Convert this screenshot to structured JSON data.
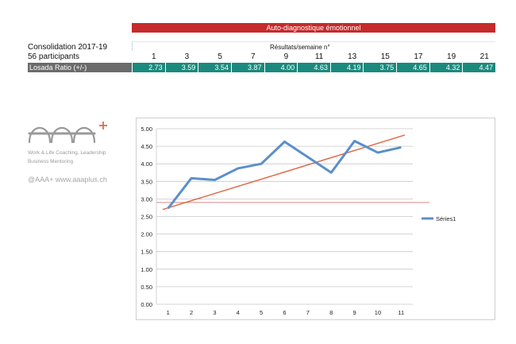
{
  "banner_title": "Auto-diagnostique émotionnel",
  "left_info": {
    "line1": "Consolidation 2017-19",
    "line2": "56 participants"
  },
  "results_label": "Résultats/semaine n°",
  "weeks": [
    "1",
    "3",
    "5",
    "7",
    "9",
    "11",
    "13",
    "15",
    "17",
    "19",
    "21"
  ],
  "ratio_label": "Losada Ratio (+/-)",
  "ratio_values": [
    "2.73",
    "3.59",
    "3.54",
    "3.87",
    "4.00",
    "4.63",
    "4.19",
    "3.75",
    "4.65",
    "4.32",
    "4.47"
  ],
  "logo": {
    "brand": "AAA+",
    "line1": "Work & Life Coaching, Leadership",
    "line2": "Business Mentoring"
  },
  "credit": "@AAA+ www.aaaplus.ch",
  "colors": {
    "banner": "#c62a2a",
    "teal": "#1a8a7c",
    "series": "#5b8fc9",
    "trend": "#e06a4a",
    "threshold": "#d98a8a",
    "logo_plus": "#e06a4a"
  },
  "chart_data": {
    "type": "line",
    "x": [
      1,
      2,
      3,
      4,
      5,
      6,
      7,
      8,
      9,
      10,
      11
    ],
    "series": [
      {
        "name": "Séries1",
        "values": [
          2.73,
          3.59,
          3.54,
          3.87,
          4.0,
          4.63,
          4.19,
          3.75,
          4.65,
          4.32,
          4.47
        ]
      }
    ],
    "trendline": {
      "start": 2.7,
      "end": 4.82
    },
    "threshold": 2.9,
    "ylim": [
      0,
      5
    ],
    "yticks": [
      "0.00",
      "0.50",
      "1.00",
      "1.50",
      "2.00",
      "2.50",
      "3.00",
      "3.50",
      "4.00",
      "4.50",
      "5.00"
    ],
    "legend": "right",
    "grid": true
  }
}
